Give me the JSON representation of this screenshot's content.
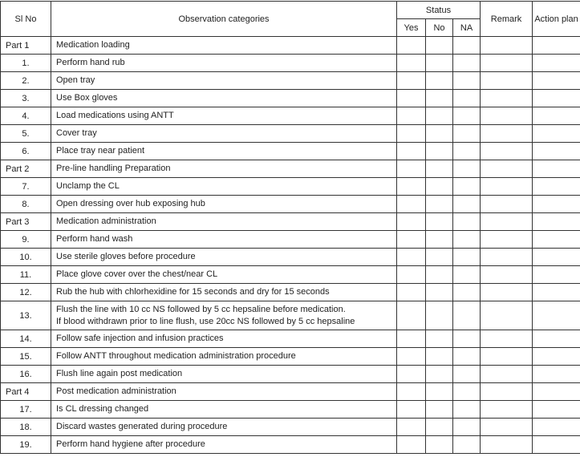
{
  "header": {
    "sl_no": "Sl No",
    "observation": "Observation categories",
    "status": "Status",
    "yes": "Yes",
    "no": "No",
    "na": "NA",
    "remark": "Remark",
    "action_plan": "Action plan"
  },
  "rows": [
    {
      "sl": "Part 1",
      "text": "Medication loading",
      "part": true
    },
    {
      "sl": "1.",
      "text": "Perform hand rub"
    },
    {
      "sl": "2.",
      "text": "Open tray"
    },
    {
      "sl": "3.",
      "text": "Use Box gloves"
    },
    {
      "sl": "4.",
      "text": "Load medications using ANTT"
    },
    {
      "sl": "5.",
      "text": "Cover tray"
    },
    {
      "sl": "6.",
      "text": "Place tray near patient"
    },
    {
      "sl": "Part 2",
      "text": "Pre-line handling Preparation",
      "part": true
    },
    {
      "sl": "7.",
      "text": "Unclamp the CL"
    },
    {
      "sl": "8.",
      "text": "Open dressing over hub exposing hub"
    },
    {
      "sl": "Part 3",
      "text": "Medication administration",
      "part": true
    },
    {
      "sl": "9.",
      "text": "Perform hand wash"
    },
    {
      "sl": "10.",
      "text": "Use sterile gloves before procedure"
    },
    {
      "sl": "11.",
      "text": "Place glove cover over the chest/near CL"
    },
    {
      "sl": "12.",
      "text": "Rub the hub with chlorhexidine for 15 seconds and dry for 15 seconds"
    },
    {
      "sl": "13.",
      "text": "Flush the line with 10 cc NS followed by 5 cc hepsaline before medication.",
      "text2": "If blood withdrawn prior to line flush, use 20cc NS followed by 5 cc hepsaline"
    },
    {
      "sl": "14.",
      "text": "Follow safe injection and infusion practices"
    },
    {
      "sl": "15.",
      "text": "Follow ANTT throughout medication administration procedure"
    },
    {
      "sl": "16.",
      "text": "Flush line again post medication"
    },
    {
      "sl": "Part 4",
      "text": "Post medication administration",
      "part": true
    },
    {
      "sl": "17.",
      "text": "Is CL dressing changed"
    },
    {
      "sl": "18.",
      "text": "Discard wastes generated during procedure"
    },
    {
      "sl": "19.",
      "text": "Perform hand hygiene after procedure"
    }
  ]
}
